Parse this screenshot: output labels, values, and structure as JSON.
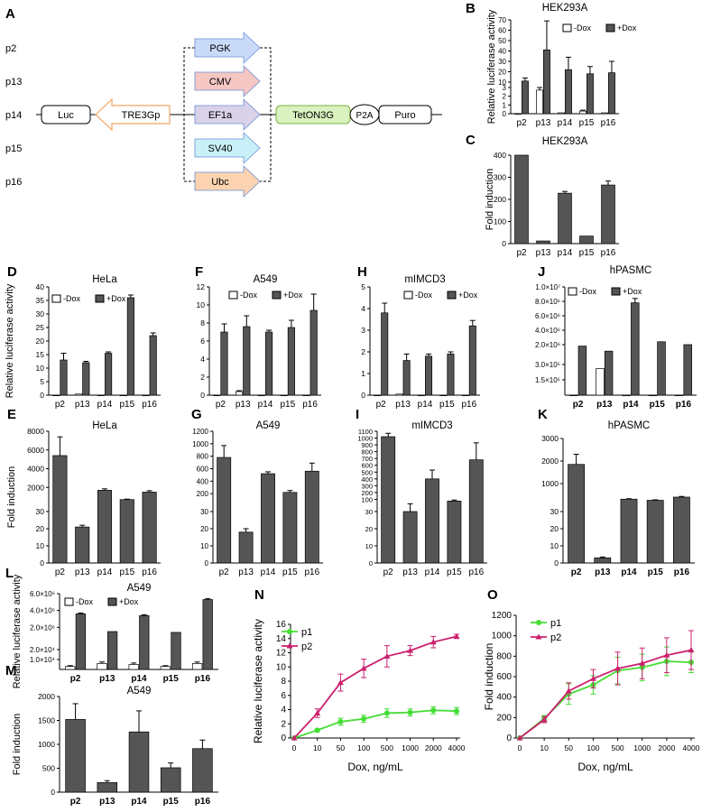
{
  "legend": {
    "minus": "-Dox",
    "plus": "+Dox"
  },
  "schematic": {
    "rows": [
      "p2",
      "p13",
      "p14",
      "p15",
      "p16"
    ],
    "promoters": [
      "PGK",
      "CMV",
      "EF1a",
      "SV40",
      "Ubc"
    ],
    "promoter_colors": [
      "#c9daf8",
      "#f4c7c3",
      "#d9d2e9",
      "#c9f0f8",
      "#fbd3b0"
    ],
    "luc": "Luc",
    "tre": "TRE3Gp",
    "tet": "TetON3G",
    "p2a": "P2A",
    "puro": "Puro"
  },
  "colors": {
    "bar_dark": "#555555",
    "bar_light": "#ffffff",
    "p1": "#44dd33",
    "p2": "#cc1f6e"
  },
  "chart_data": [
    {
      "id": "B",
      "type": "bar",
      "title": "HEK293A",
      "ylabel": "Relative luciferase activity",
      "categories": [
        "p2",
        "p13",
        "p14",
        "p15",
        "p16"
      ],
      "y_ticks_low": [
        "0",
        "1",
        "2",
        "3"
      ],
      "y_ticks_high": [
        "10",
        "20",
        "30",
        "40",
        "50",
        "60",
        "70"
      ],
      "series": [
        {
          "name": "-Dox",
          "values": [
            0,
            2.7,
            0.1,
            0.3,
            0.1
          ],
          "errors": [
            0,
            0.3,
            0.05,
            0.1,
            0.05
          ]
        },
        {
          "name": "+Dox",
          "values": [
            11,
            41,
            22,
            18,
            19
          ],
          "errors": [
            3,
            28,
            12,
            7,
            11
          ]
        }
      ]
    },
    {
      "id": "C",
      "type": "bar",
      "title": "HEK293A",
      "ylabel": "Fold induction",
      "categories": [
        "p2",
        "p13",
        "p14",
        "p15",
        "p16"
      ],
      "y_ticks": [
        "0",
        "100",
        "200",
        "300",
        "400"
      ],
      "ylim": [
        0,
        400
      ],
      "series": [
        {
          "values": [
            400,
            12,
            228,
            34,
            265
          ],
          "errors": [
            0,
            0,
            8,
            0,
            18
          ]
        }
      ]
    },
    {
      "id": "D",
      "type": "bar",
      "title": "HeLa",
      "ylabel": "Relative luciferase activity",
      "categories": [
        "p2",
        "p13",
        "p14",
        "p15",
        "p16"
      ],
      "y_ticks": [
        "0",
        "5",
        "10",
        "15",
        "20",
        "25",
        "30",
        "35",
        "40"
      ],
      "ylim": [
        0,
        40
      ],
      "series": [
        {
          "name": "-Dox",
          "values": [
            0,
            0.4,
            0,
            0,
            0
          ],
          "errors": [
            0,
            0,
            0,
            0,
            0
          ]
        },
        {
          "name": "+Dox",
          "values": [
            13,
            12,
            15.5,
            36,
            22
          ],
          "errors": [
            2.5,
            0.5,
            0.5,
            1,
            1
          ]
        }
      ]
    },
    {
      "id": "F",
      "type": "bar",
      "title": "A549",
      "categories": [
        "p2",
        "p13",
        "p14",
        "p15",
        "p16"
      ],
      "y_ticks": [
        "0",
        "2",
        "4",
        "6",
        "8",
        "10",
        "12"
      ],
      "ylim": [
        0,
        12
      ],
      "series": [
        {
          "name": "-Dox",
          "values": [
            0,
            0.4,
            0,
            0,
            0
          ],
          "errors": [
            0,
            0.1,
            0,
            0,
            0
          ]
        },
        {
          "name": "+Dox",
          "values": [
            7,
            7.6,
            7,
            7.5,
            9.4
          ],
          "errors": [
            0.9,
            1.2,
            0.2,
            0.8,
            1.8
          ]
        }
      ]
    },
    {
      "id": "H",
      "type": "bar",
      "title": "mIMCD3",
      "categories": [
        "p2",
        "p13",
        "p14",
        "p15",
        "p16"
      ],
      "y_ticks": [
        "0",
        "1",
        "2",
        "3",
        "4",
        "5"
      ],
      "ylim": [
        0,
        5
      ],
      "series": [
        {
          "name": "-Dox",
          "values": [
            0,
            0.05,
            0,
            0,
            0
          ],
          "errors": [
            0,
            0,
            0,
            0,
            0
          ]
        },
        {
          "name": "+Dox",
          "values": [
            3.8,
            1.6,
            1.8,
            1.9,
            3.2
          ],
          "errors": [
            0.45,
            0.3,
            0.1,
            0.1,
            0.25
          ]
        }
      ]
    },
    {
      "id": "J",
      "type": "bar",
      "title": "hPASMC",
      "categories": [
        "p2",
        "p13",
        "p14",
        "p15",
        "p16"
      ],
      "y_ticks_low": [
        "1.5×10⁵",
        "3.0×10⁵"
      ],
      "y_ticks_high": [
        "2.0×10⁶",
        "4.0×10⁶",
        "6.0×10⁶",
        "8.0×10⁶",
        "1.0×10⁷"
      ],
      "series": [
        {
          "name": "-Dox",
          "values": [
            0,
            260000,
            0,
            0,
            0
          ],
          "errors": [
            0,
            0,
            0,
            0,
            0
          ]
        },
        {
          "name": "+Dox",
          "values": [
            1800000,
            1100000,
            7800000,
            2400000,
            2000000
          ],
          "errors": [
            0,
            0,
            600000,
            0,
            0
          ]
        }
      ]
    },
    {
      "id": "E",
      "type": "bar",
      "title": "HeLa",
      "ylabel": "Fold induction",
      "categories": [
        "p2",
        "p13",
        "p14",
        "p15",
        "p16"
      ],
      "y_ticks_low": [
        "0",
        "10",
        "20",
        "30"
      ],
      "y_ticks_high": [
        "2000",
        "4000",
        "6000",
        "8000"
      ],
      "series": [
        {
          "values": [
            5400,
            21,
            1700,
            700,
            1500
          ],
          "errors": [
            2000,
            1,
            150,
            50,
            150
          ]
        }
      ]
    },
    {
      "id": "G",
      "type": "bar",
      "title": "A549",
      "categories": [
        "p2",
        "p13",
        "p14",
        "p15",
        "p16"
      ],
      "y_ticks_low": [
        "0",
        "10",
        "20",
        "30"
      ],
      "y_ticks_high": [
        "200",
        "400",
        "600",
        "800",
        "1000",
        "1200"
      ],
      "series": [
        {
          "values": [
            780,
            18,
            520,
            220,
            560
          ],
          "errors": [
            190,
            2,
            30,
            30,
            130
          ]
        }
      ]
    },
    {
      "id": "I",
      "type": "bar",
      "title": "mIMCD3",
      "categories": [
        "p2",
        "p13",
        "p14",
        "p15",
        "p16"
      ],
      "y_ticks_low": [
        "0",
        "10",
        "20",
        "30"
      ],
      "y_ticks_high": [
        "100",
        "200",
        "300",
        "400",
        "500",
        "600",
        "700",
        "800",
        "900",
        "1000",
        "1100"
      ],
      "series": [
        {
          "values": [
            1020,
            30,
            400,
            75,
            680
          ],
          "errors": [
            50,
            5,
            130,
            15,
            250
          ]
        }
      ]
    },
    {
      "id": "K",
      "type": "bar",
      "title": "hPASMC",
      "categories": [
        "p2",
        "p13",
        "p14",
        "p15",
        "p16"
      ],
      "y_ticks_low": [
        "0",
        "10",
        "20",
        "30"
      ],
      "y_ticks_high": [
        "1000",
        "2000",
        "3000"
      ],
      "series": [
        {
          "values": [
            1850,
            3,
            310,
            260,
            400
          ],
          "errors": [
            450,
            0.5,
            20,
            20,
            30
          ]
        }
      ]
    },
    {
      "id": "L",
      "type": "bar",
      "title": "A549",
      "ylabel": "Relative luciferase activity",
      "categories": [
        "p2",
        "p13",
        "p14",
        "p15",
        "p16"
      ],
      "y_ticks_low": [
        "1.0×10⁴",
        "2.0×10⁴"
      ],
      "y_ticks_high": [
        "2.0×10⁶",
        "4.0×10⁶",
        "6.0×10⁶"
      ],
      "series": [
        {
          "name": "-Dox",
          "values": [
            3000,
            6000,
            5000,
            3000,
            6000
          ],
          "errors": [
            800,
            1500,
            1500,
            800,
            1500
          ]
        },
        {
          "name": "+Dox",
          "values": [
            3600000,
            1500000,
            3400000,
            1400000,
            5300000
          ],
          "errors": [
            100000,
            0,
            100000,
            0,
            100000
          ]
        }
      ]
    },
    {
      "id": "M",
      "type": "bar",
      "title": "A549",
      "ylabel": "Fold induction",
      "categories": [
        "p2",
        "p13",
        "p14",
        "p15",
        "p16"
      ],
      "y_ticks": [
        "0",
        "500",
        "1000",
        "1500",
        "2000"
      ],
      "ylim": [
        0,
        2000
      ],
      "series": [
        {
          "values": [
            1520,
            200,
            1260,
            510,
            910
          ],
          "errors": [
            330,
            40,
            440,
            100,
            180
          ]
        }
      ]
    },
    {
      "id": "N",
      "type": "line",
      "xlabel": "Dox, ng/mL",
      "ylabel": "Relative luciferase activity",
      "x": [
        "0",
        "10",
        "50",
        "100",
        "500",
        "1000",
        "2000",
        "4000"
      ],
      "y_ticks": [
        "0",
        "2",
        "4",
        "6",
        "8",
        "10",
        "12",
        "14",
        "16"
      ],
      "ylim": [
        0,
        16
      ],
      "series": [
        {
          "name": "p1",
          "values": [
            0,
            1.1,
            2.3,
            2.7,
            3.5,
            3.6,
            3.9,
            3.8
          ],
          "errors": [
            0,
            0.2,
            0.5,
            0.5,
            0.6,
            0.5,
            0.5,
            0.5
          ]
        },
        {
          "name": "p2",
          "values": [
            0,
            3.5,
            7.8,
            9.8,
            11.5,
            12.3,
            13.5,
            14.3
          ],
          "errors": [
            0,
            0.6,
            1.2,
            1.3,
            1.5,
            0.7,
            0.8,
            0.3
          ]
        }
      ]
    },
    {
      "id": "O",
      "type": "line",
      "xlabel": "Dox, ng/mL",
      "ylabel": "Fold induction",
      "x": [
        "0",
        "10",
        "50",
        "100",
        "500",
        "1000",
        "2000",
        "4000"
      ],
      "y_ticks": [
        "0",
        "200",
        "400",
        "600",
        "800",
        "1000",
        "1200"
      ],
      "ylim": [
        0,
        1200
      ],
      "series": [
        {
          "name": "p1",
          "values": [
            0,
            190,
            430,
            520,
            660,
            690,
            750,
            740
          ],
          "errors": [
            0,
            30,
            100,
            90,
            130,
            130,
            140,
            100
          ]
        },
        {
          "name": "p2",
          "values": [
            0,
            180,
            460,
            580,
            680,
            730,
            810,
            860
          ],
          "errors": [
            0,
            30,
            80,
            90,
            160,
            150,
            170,
            190
          ]
        }
      ]
    }
  ]
}
